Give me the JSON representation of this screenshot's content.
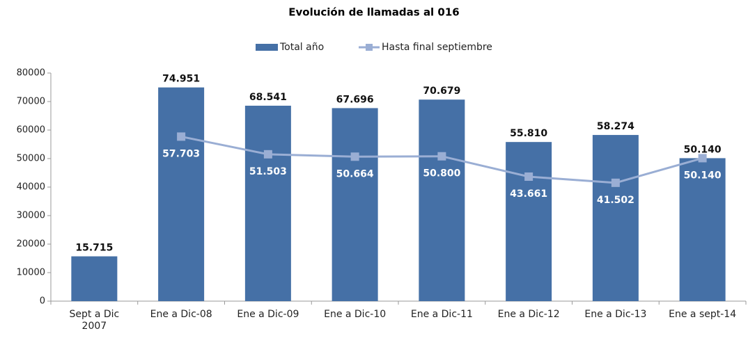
{
  "chart_data": {
    "type": "bar",
    "title": "Evolución de llamadas al 016",
    "categories": [
      "Sept a Dic\n2007",
      "Ene a Dic-08",
      "Ene a Dic-09",
      "Ene a Dic-10",
      "Ene a Dic-11",
      "Ene a Dic-12",
      "Ene a Dic-13",
      "Ene a sept-14"
    ],
    "series": [
      {
        "name": "Total año",
        "type": "bar",
        "color": "#4570a6",
        "values": [
          15715,
          74951,
          68541,
          67696,
          70679,
          55810,
          58274,
          50140
        ],
        "value_labels": [
          "15.715",
          "74.951",
          "68.541",
          "67.696",
          "70.679",
          "55.810",
          "58.274",
          "50.140"
        ]
      },
      {
        "name": "Hasta final septiembre",
        "type": "line",
        "color": "#9aaed4",
        "values": [
          null,
          57703,
          51503,
          50664,
          50800,
          43661,
          41502,
          50140
        ],
        "value_labels": [
          null,
          "57.703",
          "51.503",
          "50.664",
          "50.800",
          "43.661",
          "41.502",
          "50.140"
        ]
      }
    ],
    "ylim": [
      0,
      80000
    ],
    "yticks": [
      0,
      10000,
      20000,
      30000,
      40000,
      50000,
      60000,
      70000,
      80000
    ],
    "legend": "top",
    "grid": false
  }
}
